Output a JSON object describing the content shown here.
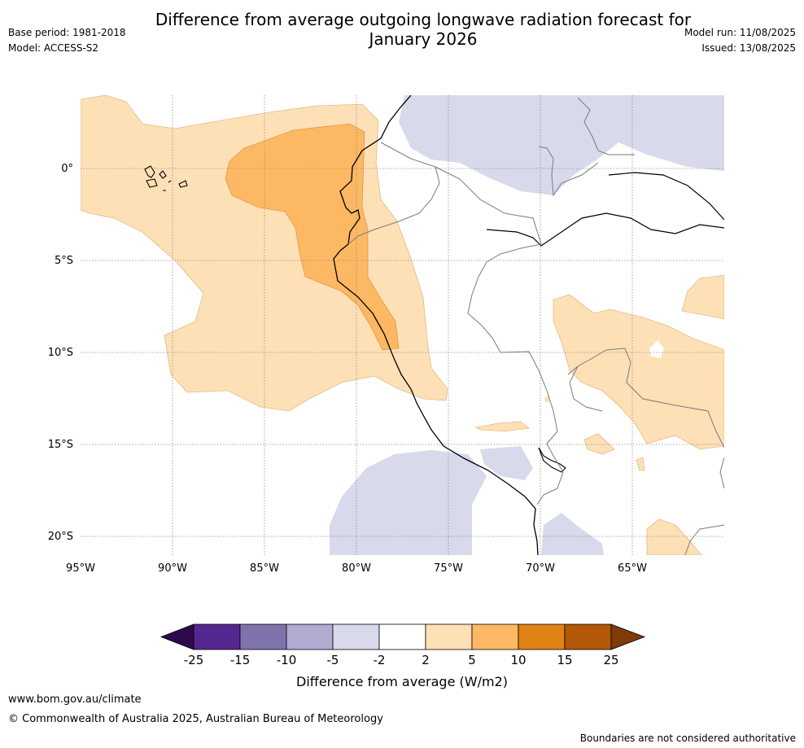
{
  "header": {
    "title_line1": "Difference from average outgoing longwave radiation forecast for",
    "title_line2": "January 2026",
    "base_period": "Base period: 1981-2018",
    "model": "Model: ACCESS-S2",
    "model_run": "Model run: 11/08/2025",
    "issued": "Issued: 13/08/2025"
  },
  "map": {
    "lat_labels": [
      "0°",
      "5°S",
      "10°S",
      "15°S",
      "20°S"
    ],
    "lon_labels": [
      "95°W",
      "90°W",
      "85°W",
      "80°W",
      "75°W",
      "70°W",
      "65°W"
    ],
    "lat_values": [
      0,
      -5,
      -10,
      -15,
      -20
    ],
    "lon_values": [
      -95,
      -90,
      -85,
      -80,
      -75,
      -70,
      -65
    ],
    "extent": {
      "lon": [
        -95,
        -60
      ],
      "lat": [
        -21,
        4
      ]
    },
    "grid": true
  },
  "legend": {
    "title": "Difference from average (W/m2)",
    "ticks": [
      "-25",
      "-15",
      "-10",
      "-5",
      "-2",
      "2",
      "5",
      "10",
      "15",
      "25"
    ],
    "colors": [
      "#2d0a4e",
      "#54278f",
      "#8073ac",
      "#b2abd2",
      "#d8daeb",
      "#ffffff",
      "#fee0b6",
      "#fdb863",
      "#e08214",
      "#b35806",
      "#7f3b08"
    ]
  },
  "footer": {
    "url": "www.bom.gov.au/climate",
    "copyright": "© Commonwealth of Australia 2025, Australian Bureau of Meteorology",
    "disclaimer": "Boundaries are not considered authoritative"
  }
}
